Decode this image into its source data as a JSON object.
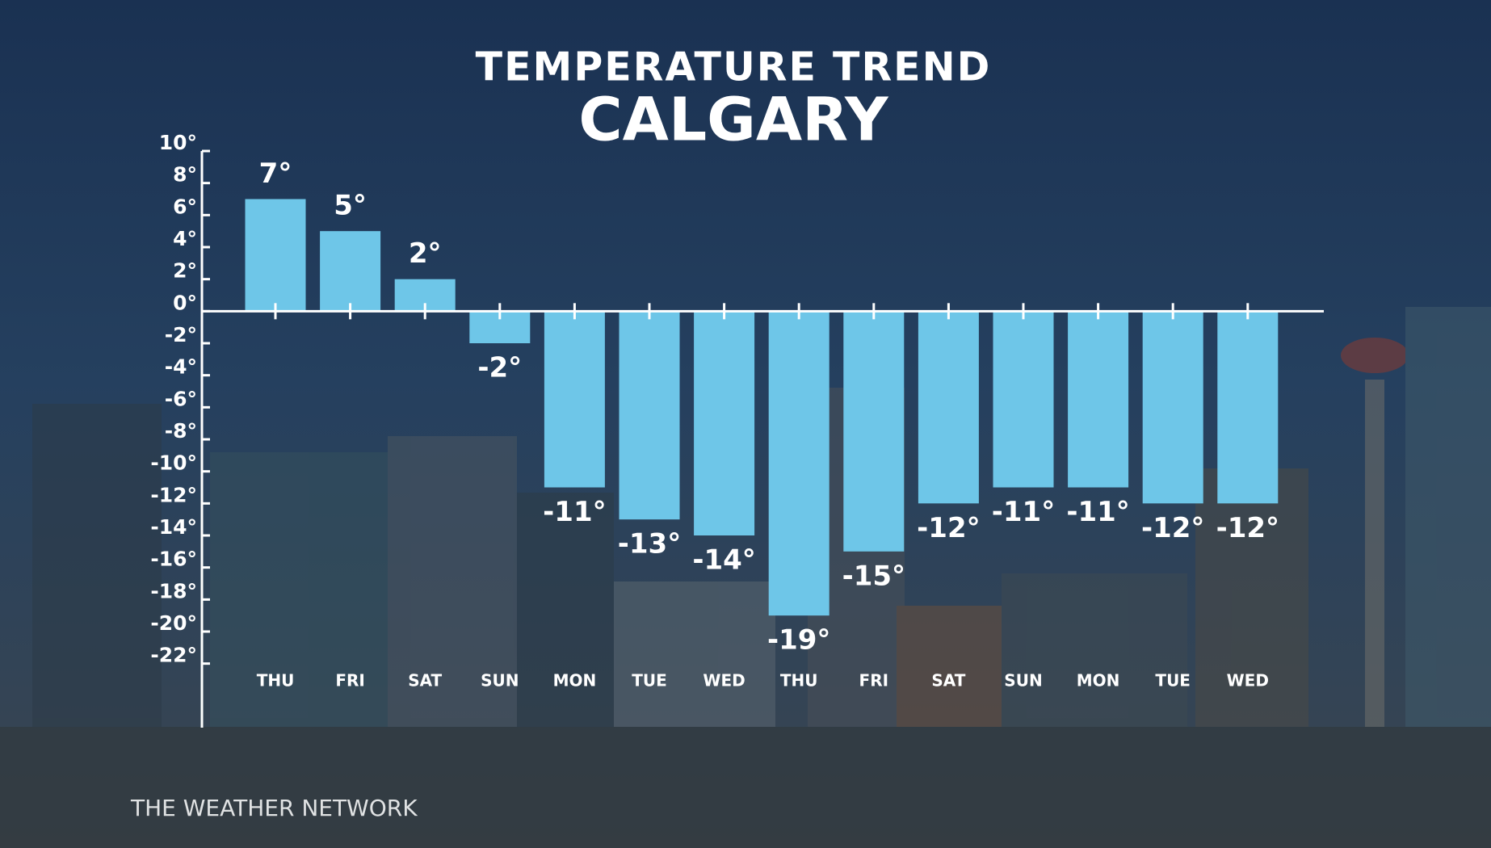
{
  "chart_data": {
    "type": "bar",
    "title": "TEMPERATURE TREND",
    "subtitle": "CALGARY",
    "source": "THE WEATHER NETWORK",
    "categories": [
      "THU",
      "FRI",
      "SAT",
      "SUN",
      "MON",
      "TUE",
      "WED",
      "THU",
      "FRI",
      "SAT",
      "SUN",
      "MON",
      "TUE",
      "WED"
    ],
    "values": [
      7,
      5,
      2,
      -2,
      -11,
      -13,
      -14,
      -19,
      -15,
      -12,
      -11,
      -11,
      -12,
      -12
    ],
    "value_labels": [
      "7°",
      "5°",
      "2°",
      "-2°",
      "-11°",
      "-13°",
      "-14°",
      "-19°",
      "-15°",
      "-12°",
      "-11°",
      "-11°",
      "-12°",
      "-12°"
    ],
    "color": "#6ec6e8",
    "ylim": [
      -26,
      10
    ],
    "yticks": [
      {
        "value": 10,
        "label": "10°"
      },
      {
        "value": 8,
        "label": "8°"
      },
      {
        "value": 6,
        "label": "6°"
      },
      {
        "value": 4,
        "label": "4°"
      },
      {
        "value": 2,
        "label": "2°"
      },
      {
        "value": 0,
        "label": "0°"
      },
      {
        "value": -2,
        "label": "-2°"
      },
      {
        "value": -4,
        "label": "-4°"
      },
      {
        "value": -6,
        "label": "-6°"
      },
      {
        "value": -8,
        "label": "-8°"
      },
      {
        "value": -10,
        "label": "-10°"
      },
      {
        "value": -12,
        "label": "-12°"
      },
      {
        "value": -14,
        "label": "-14°"
      },
      {
        "value": -16,
        "label": "-16°"
      },
      {
        "value": -18,
        "label": "-18°"
      },
      {
        "value": -20,
        "label": "-20°"
      },
      {
        "value": -22,
        "label": "-22°"
      }
    ]
  }
}
